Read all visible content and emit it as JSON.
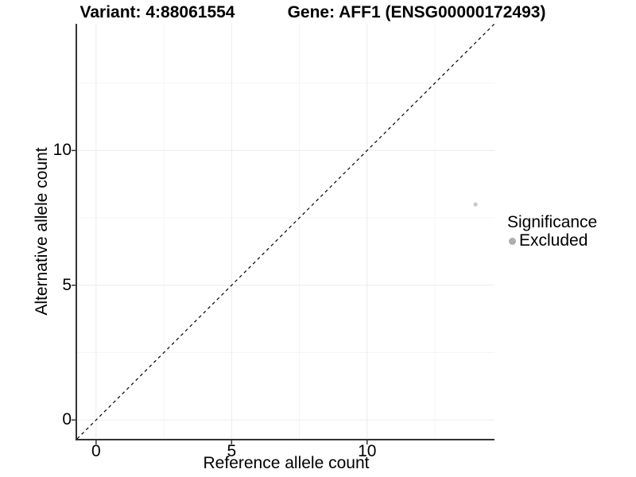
{
  "chart_data": {
    "type": "scatter",
    "title_left": "Variant: 4:88061554",
    "title_right": "Gene: AFF1 (ENSG00000172493)",
    "xlabel": "Reference allele count",
    "ylabel": "Alternative allele count",
    "xlim": [
      -0.7,
      14.7
    ],
    "ylim": [
      -0.7,
      14.7
    ],
    "x_ticks": [
      0,
      5,
      10
    ],
    "y_ticks": [
      0,
      5,
      10
    ],
    "grid": true,
    "legend_position": "right",
    "identity_line": {
      "slope": 1,
      "intercept": 0,
      "style": "dashed",
      "color": "#000000"
    },
    "series": [
      {
        "name": "Excluded",
        "color": "#c9c9c9",
        "points": [
          {
            "x": 14,
            "y": 8
          }
        ]
      }
    ],
    "legend": {
      "title": "Significance",
      "entries": [
        {
          "label": "Excluded",
          "color": "#aeaeae"
        }
      ]
    }
  },
  "colors": {
    "axis_line": "#333333",
    "tick_mark": "#333333",
    "grid_major": "#ebebeb",
    "grid_minor": "#f5f5f5",
    "background": "#ffffff",
    "text": "#000000"
  }
}
